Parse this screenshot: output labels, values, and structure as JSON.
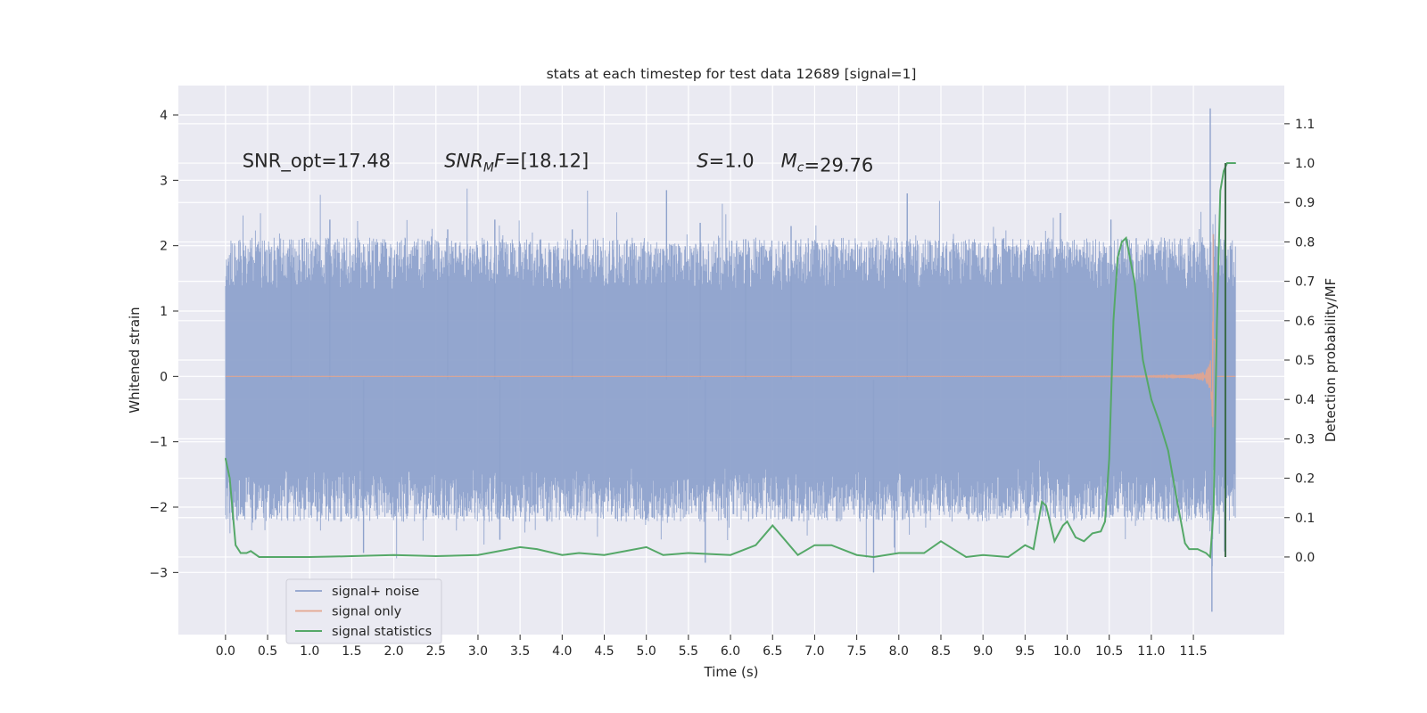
{
  "chart_data": {
    "type": "line",
    "title": "stats at each timestep for test data 12689 [signal=1]",
    "xlabel": "Time (s)",
    "ylabel_left": "Whitened strain",
    "ylabel_right": "Detection probability/MF",
    "xlim": [
      -0.56,
      12.58
    ],
    "ylim_left": [
      -3.95,
      4.45
    ],
    "ylim_right": [
      -0.197,
      1.197
    ],
    "x_ticks": [
      0.0,
      0.5,
      1.0,
      1.5,
      2.0,
      2.5,
      3.0,
      3.5,
      4.0,
      4.5,
      5.0,
      5.5,
      6.0,
      6.5,
      7.0,
      7.5,
      8.0,
      8.5,
      9.0,
      9.5,
      10.0,
      10.5,
      11.0,
      11.5
    ],
    "x_tick_labels": [
      "0.0",
      "0.5",
      "1.0",
      "1.5",
      "2.0",
      "2.5",
      "3.0",
      "3.5",
      "4.0",
      "4.5",
      "5.0",
      "5.5",
      "6.0",
      "6.5",
      "7.0",
      "7.5",
      "8.0",
      "8.5",
      "9.0",
      "9.5",
      "10.0",
      "10.5",
      "11.0",
      "11.5"
    ],
    "y_ticks_left": [
      -3,
      -2,
      -1,
      0,
      1,
      2,
      3,
      4
    ],
    "y_tick_labels_left": [
      "−3",
      "−2",
      "−1",
      "0",
      "1",
      "2",
      "3",
      "4"
    ],
    "y_ticks_right": [
      0.0,
      0.1,
      0.2,
      0.3,
      0.4,
      0.5,
      0.6,
      0.7,
      0.8,
      0.9,
      1.0,
      1.1
    ],
    "y_tick_labels_right": [
      "0.0",
      "0.1",
      "0.2",
      "0.3",
      "0.4",
      "0.5",
      "0.6",
      "0.7",
      "0.8",
      "0.9",
      "1.0",
      "1.1"
    ],
    "grid": true,
    "legend_position": "lower-left",
    "annotations": [
      {
        "type": "plain",
        "label": "SNR_opt=17.48",
        "x": 0.2,
        "y": 3.3
      },
      {
        "type": "sub",
        "base": "SNR",
        "sub": "M",
        "tail": "F",
        "value": "=[18.12]",
        "x": 2.6,
        "y": 3.3
      },
      {
        "type": "italic",
        "base": "S",
        "value": "=1.0",
        "x": 5.6,
        "y": 3.3
      },
      {
        "type": "sub",
        "base": "M",
        "sub": "c",
        "tail": "",
        "value": "=29.76",
        "x": 6.6,
        "y": 3.3
      }
    ],
    "series": [
      {
        "name": "signal+ noise",
        "color": "#8ea2cc",
        "axis": "left",
        "kind": "noise",
        "x_range": [
          0.0,
          12.0
        ],
        "band": [
          -1.55,
          1.45
        ],
        "spikes": [
          {
            "x": 0.78,
            "y": 1.75
          },
          {
            "x": 1.24,
            "y": 2.4
          },
          {
            "x": 1.64,
            "y": -2.7
          },
          {
            "x": 2.64,
            "y": 2.25
          },
          {
            "x": 3.2,
            "y": 2.4
          },
          {
            "x": 3.26,
            "y": -2.5
          },
          {
            "x": 4.12,
            "y": 2.25
          },
          {
            "x": 5.24,
            "y": 2.85
          },
          {
            "x": 5.64,
            "y": 2.35
          },
          {
            "x": 5.7,
            "y": -2.85
          },
          {
            "x": 6.18,
            "y": 2.1
          },
          {
            "x": 6.72,
            "y": 2.3
          },
          {
            "x": 7.7,
            "y": -3.0
          },
          {
            "x": 8.1,
            "y": 2.8
          },
          {
            "x": 9.92,
            "y": 2.5
          },
          {
            "x": 10.52,
            "y": 2.4
          },
          {
            "x": 11.7,
            "y": 4.1
          },
          {
            "x": 11.72,
            "y": -3.6
          }
        ]
      },
      {
        "name": "signal only",
        "color": "#e4a58d",
        "axis": "left",
        "kind": "chirp",
        "x_range": [
          0.0,
          12.0
        ],
        "merger_time": 11.74,
        "peak_amplitude": 3.2
      },
      {
        "name": "signal statistics",
        "color": "#55a868",
        "axis": "right",
        "kind": "line",
        "x": [
          0.0,
          0.05,
          0.12,
          0.18,
          0.25,
          0.3,
          0.4,
          0.5,
          0.8,
          1.0,
          1.5,
          2.0,
          2.5,
          3.0,
          3.5,
          3.7,
          4.0,
          4.2,
          4.5,
          5.0,
          5.2,
          5.5,
          6.0,
          6.3,
          6.5,
          6.8,
          7.0,
          7.2,
          7.5,
          7.7,
          8.0,
          8.3,
          8.5,
          8.8,
          9.0,
          9.3,
          9.5,
          9.6,
          9.7,
          9.75,
          9.85,
          9.95,
          10.0,
          10.1,
          10.2,
          10.3,
          10.4,
          10.45,
          10.5,
          10.55,
          10.6,
          10.65,
          10.7,
          10.8,
          10.9,
          11.0,
          11.1,
          11.2,
          11.3,
          11.4,
          11.45,
          11.55,
          11.65,
          11.7,
          11.74,
          11.78,
          11.82,
          11.86,
          11.9,
          11.95,
          12.0
        ],
        "y": [
          0.25,
          0.2,
          0.03,
          0.01,
          0.01,
          0.015,
          0.0,
          0.0,
          0.0,
          0.0,
          0.002,
          0.005,
          0.002,
          0.005,
          0.025,
          0.02,
          0.005,
          0.01,
          0.005,
          0.025,
          0.005,
          0.01,
          0.005,
          0.03,
          0.08,
          0.005,
          0.03,
          0.03,
          0.005,
          0.0,
          0.01,
          0.01,
          0.04,
          0.0,
          0.005,
          0.0,
          0.03,
          0.02,
          0.14,
          0.13,
          0.04,
          0.08,
          0.09,
          0.05,
          0.04,
          0.06,
          0.065,
          0.09,
          0.25,
          0.6,
          0.76,
          0.8,
          0.81,
          0.7,
          0.5,
          0.4,
          0.34,
          0.27,
          0.15,
          0.035,
          0.02,
          0.02,
          0.01,
          0.0,
          0.12,
          0.6,
          0.93,
          0.98,
          1.0,
          1.0,
          1.0
        ]
      },
      {
        "name": "",
        "color": "#3a6a48",
        "axis": "right",
        "kind": "vline",
        "x": 11.88,
        "y_range": [
          0.0,
          1.0
        ]
      }
    ]
  }
}
